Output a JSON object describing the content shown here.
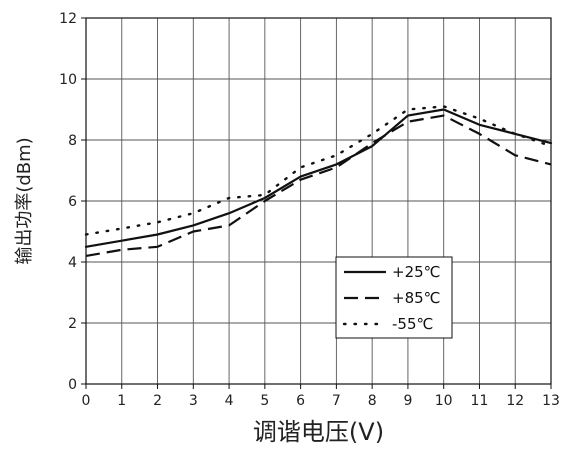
{
  "chart_data": {
    "type": "line",
    "title": "",
    "xlabel": "调谐电压(V)",
    "ylabel": "输出功率(dBm)",
    "xlim": [
      0,
      13
    ],
    "ylim": [
      0,
      12
    ],
    "xticks": [
      "0",
      "1",
      "2",
      "3",
      "4",
      "5",
      "6",
      "7",
      "8",
      "9",
      "10",
      "11",
      "12",
      "13"
    ],
    "yticks": [
      "0",
      "2",
      "4",
      "6",
      "8",
      "10",
      "12"
    ],
    "grid": true,
    "legend_position": "lower-right",
    "series": [
      {
        "name": "+25℃",
        "style": "solid",
        "color": "#111111",
        "x": [
          0,
          1,
          2,
          3,
          4,
          5,
          6,
          7,
          8,
          9,
          10,
          11,
          12,
          13
        ],
        "y": [
          4.5,
          4.7,
          4.9,
          5.2,
          5.6,
          6.1,
          6.8,
          7.2,
          7.8,
          8.8,
          9.0,
          8.5,
          8.2,
          7.9
        ]
      },
      {
        "name": "+85℃",
        "style": "dashed",
        "color": "#111111",
        "x": [
          0,
          1,
          2,
          3,
          4,
          5,
          6,
          7,
          8,
          9,
          10,
          11,
          12,
          13
        ],
        "y": [
          4.2,
          4.4,
          4.5,
          5.0,
          5.2,
          6.0,
          6.7,
          7.1,
          7.9,
          8.6,
          8.8,
          8.2,
          7.5,
          7.2
        ]
      },
      {
        "name": "-55℃",
        "style": "dotted",
        "color": "#111111",
        "x": [
          0,
          1,
          2,
          3,
          4,
          5,
          6,
          7,
          8,
          9,
          10,
          11,
          12,
          13
        ],
        "y": [
          4.9,
          5.1,
          5.3,
          5.6,
          6.1,
          6.2,
          7.1,
          7.5,
          8.2,
          9.0,
          9.1,
          8.7,
          8.2,
          7.8
        ]
      }
    ]
  }
}
